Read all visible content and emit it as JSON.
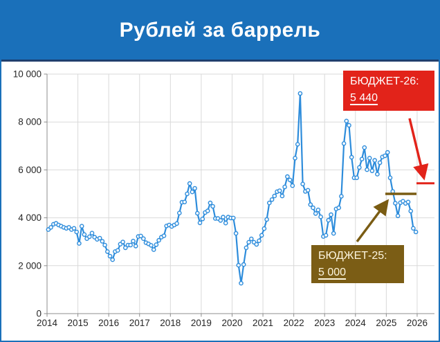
{
  "title": "Рублей за баррель",
  "annotations": {
    "budget26": {
      "label": "БЮДЖЕТ-26:",
      "value": "5 440",
      "color": "#e2231a"
    },
    "budget25": {
      "label": "БЮДЖЕТ-25:",
      "value": "5 000",
      "color": "#7b5d15"
    }
  },
  "chart_data": {
    "type": "line",
    "title": "Рублей за баррель",
    "frequency": "monthly",
    "x_start_year": 2014,
    "x_tick_labels": [
      "2014",
      "2015",
      "2016",
      "2017",
      "2018",
      "2019",
      "2020",
      "2021",
      "2022",
      "2023",
      "2024",
      "2025",
      "2026"
    ],
    "y_ticks": [
      {
        "value": 0,
        "label": "0"
      },
      {
        "value": 2000,
        "label": "2 000"
      },
      {
        "value": 4000,
        "label": "4 000"
      },
      {
        "value": 6000,
        "label": "6 000"
      },
      {
        "value": 8000,
        "label": "8 000"
      },
      {
        "value": 10000,
        "label": "10 000"
      }
    ],
    "ylim": [
      0,
      10000
    ],
    "grid": true,
    "line_color": "#2d8cdb",
    "marker": "circle-open",
    "values": [
      3510,
      3600,
      3730,
      3770,
      3700,
      3650,
      3600,
      3560,
      3600,
      3510,
      3560,
      3410,
      2930,
      3650,
      3300,
      3130,
      3210,
      3360,
      3190,
      3100,
      3150,
      3020,
      2860,
      2590,
      2400,
      2250,
      2590,
      2640,
      2900,
      2990,
      2750,
      2860,
      2860,
      3030,
      2820,
      3220,
      3240,
      3130,
      2960,
      2910,
      2850,
      2670,
      2880,
      3060,
      3190,
      3250,
      3660,
      3700,
      3640,
      3700,
      3760,
      4200,
      4650,
      4660,
      5000,
      5430,
      5080,
      5230,
      4190,
      3790,
      3950,
      4220,
      4290,
      4620,
      4480,
      3970,
      3970,
      3890,
      4030,
      3780,
      4030,
      3990,
      3990,
      3350,
      2020,
      1270,
      2050,
      2750,
      2980,
      3120,
      2980,
      2890,
      3040,
      3270,
      3550,
      3930,
      4620,
      4760,
      4910,
      5090,
      5130,
      4910,
      5290,
      5720,
      5580,
      5340,
      6490,
      7070,
      9190,
      5410,
      5100,
      5150,
      4550,
      4420,
      4180,
      4330,
      4040,
      3220,
      3270,
      3900,
      4130,
      3350,
      4370,
      4420,
      4900,
      7100,
      8040,
      7860,
      6530,
      5670,
      5670,
      6100,
      6450,
      6930,
      6010,
      6490,
      5960,
      6400,
      5820,
      6300,
      6540,
      6590,
      6730,
      5670,
      5100,
      4610,
      4080,
      4630,
      4690,
      4600,
      4660,
      4280,
      3560,
      3410
    ],
    "reference_lines": [
      {
        "name": "БЮДЖЕТ-26",
        "value": 5440,
        "color": "#e2231a"
      },
      {
        "name": "БЮДЖЕТ-25",
        "value": 5000,
        "color": "#7a5c13"
      }
    ]
  }
}
